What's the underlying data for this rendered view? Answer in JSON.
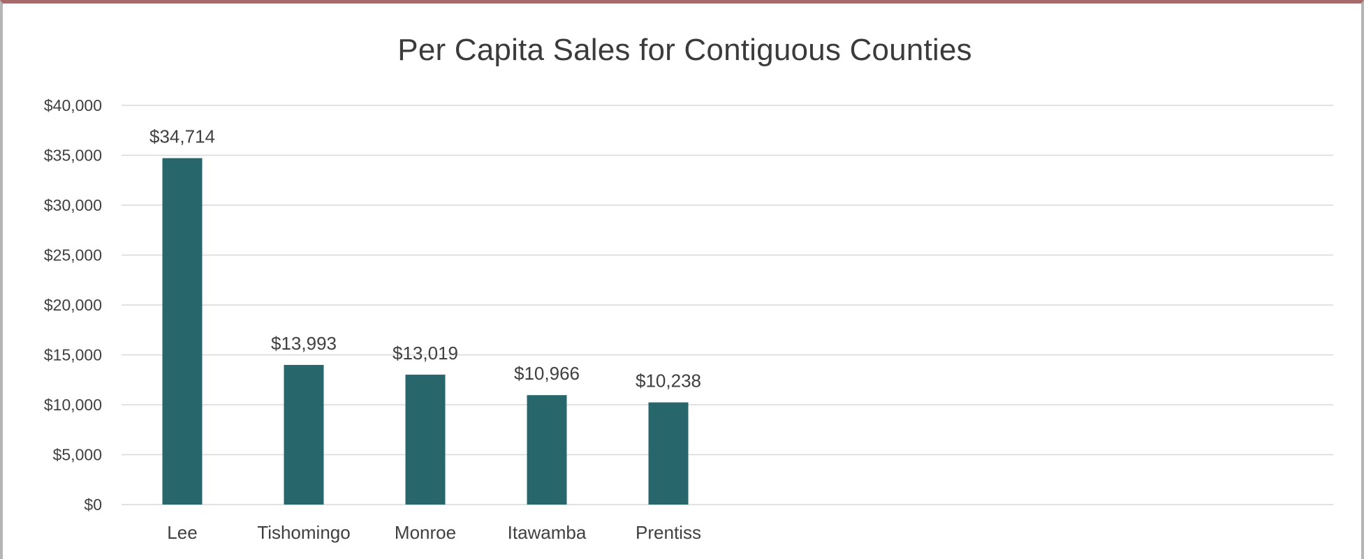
{
  "chart_data": {
    "type": "bar",
    "title": "Per Capita Sales for Contiguous Counties",
    "xlabel": "",
    "ylabel": "",
    "categories": [
      "Lee",
      "Tishomingo",
      "Monroe",
      "Itawamba",
      "Prentiss"
    ],
    "values": [
      34714,
      13993,
      13019,
      10966,
      10238
    ],
    "data_labels": [
      "$34,714",
      "$13,993",
      "$13,019",
      "$10,966",
      "$10,238"
    ],
    "ylim": [
      0,
      40000
    ],
    "yticks": [
      0,
      5000,
      10000,
      15000,
      20000,
      25000,
      30000,
      35000,
      40000
    ],
    "ytick_labels": [
      "$0",
      "$5,000",
      "$10,000",
      "$15,000",
      "$20,000",
      "$25,000",
      "$30,000",
      "$35,000",
      "$40,000"
    ],
    "grid": true,
    "legend": "none",
    "bar_color": "#27666b",
    "grid_color": "#d9d9d9"
  }
}
